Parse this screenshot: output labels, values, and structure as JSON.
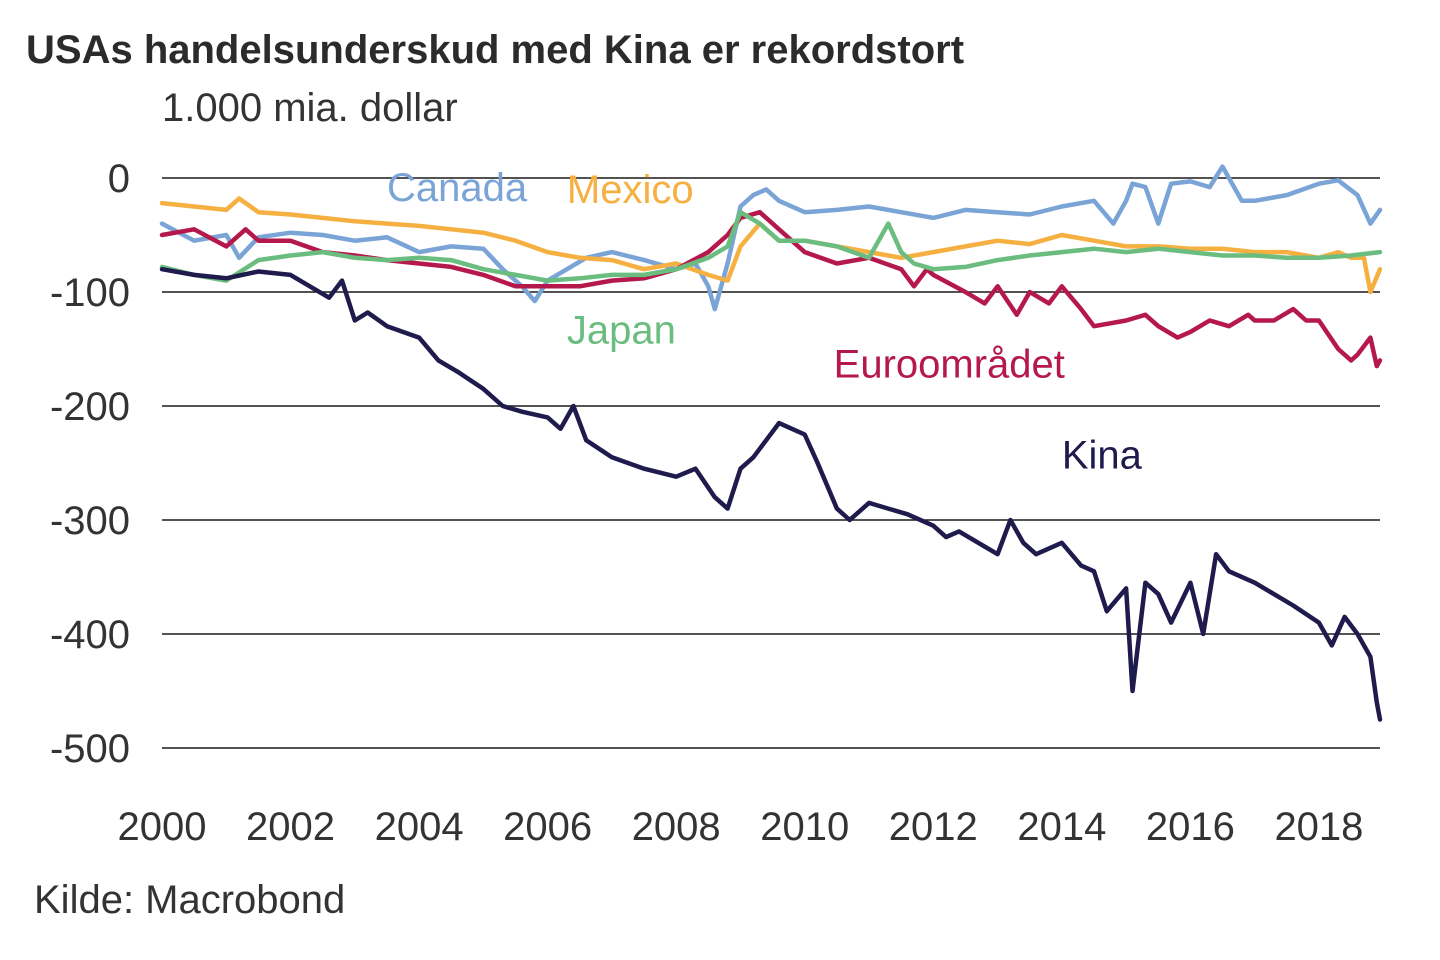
{
  "chart_data": {
    "type": "line",
    "title": "USAs handelsunderskud med Kina er rekordstort",
    "ylabel": "1.000 mia. dollar",
    "xlabel": "",
    "source": "Kilde: Macrobond",
    "ylim": [
      -500,
      0
    ],
    "yticks": [
      0,
      -100,
      -200,
      -300,
      -400,
      -500
    ],
    "ytick_labels": [
      "0",
      "-100",
      "-200",
      "-300",
      "-400",
      "-500"
    ],
    "xlim": [
      2000,
      2018.95
    ],
    "xticks": [
      2000,
      2002,
      2004,
      2006,
      2008,
      2010,
      2012,
      2014,
      2016,
      2018
    ],
    "xtick_labels": [
      "2000",
      "2002",
      "2004",
      "2006",
      "2008",
      "2010",
      "2012",
      "2014",
      "2016",
      "2018"
    ],
    "grid": true,
    "legend": "inline labels",
    "series": [
      {
        "name": "Canada",
        "color": "#7ba4d6",
        "x": [
          2000,
          2000.5,
          2001,
          2001.2,
          2001.5,
          2002,
          2002.5,
          2003,
          2003.5,
          2004,
          2004.5,
          2005,
          2005.3,
          2005.6,
          2005.8,
          2006,
          2006.3,
          2006.6,
          2007,
          2007.5,
          2008,
          2008.3,
          2008.5,
          2008.6,
          2008.8,
          2009,
          2009.2,
          2009.4,
          2009.6,
          2010,
          2010.5,
          2011,
          2011.5,
          2012,
          2012.5,
          2013,
          2013.5,
          2014,
          2014.5,
          2014.8,
          2015,
          2015.1,
          2015.3,
          2015.5,
          2015.7,
          2016,
          2016.3,
          2016.5,
          2016.8,
          2017,
          2017.5,
          2018,
          2018.3,
          2018.6,
          2018.8,
          2018.95
        ],
        "values": [
          -40,
          -55,
          -50,
          -70,
          -52,
          -48,
          -50,
          -55,
          -52,
          -65,
          -60,
          -62,
          -80,
          -95,
          -108,
          -90,
          -80,
          -70,
          -65,
          -72,
          -80,
          -75,
          -95,
          -115,
          -75,
          -25,
          -15,
          -10,
          -20,
          -30,
          -28,
          -25,
          -30,
          -35,
          -28,
          -30,
          -32,
          -25,
          -20,
          -40,
          -20,
          -5,
          -8,
          -40,
          -5,
          -3,
          -8,
          10,
          -20,
          -20,
          -15,
          -5,
          -2,
          -15,
          -40,
          -28
        ]
      },
      {
        "name": "Mexico",
        "color": "#f5b041",
        "x": [
          2000,
          2000.5,
          2001,
          2001.2,
          2001.5,
          2002,
          2002.5,
          2003,
          2003.5,
          2004,
          2004.5,
          2005,
          2005.5,
          2006,
          2006.5,
          2007,
          2007.5,
          2008,
          2008.5,
          2008.8,
          2009,
          2009.3,
          2009.6,
          2010,
          2010.5,
          2011,
          2011.5,
          2012,
          2012.5,
          2013,
          2013.5,
          2014,
          2014.5,
          2015,
          2015.5,
          2016,
          2016.5,
          2017,
          2017.5,
          2018,
          2018.3,
          2018.5,
          2018.7,
          2018.8,
          2018.95
        ],
        "values": [
          -22,
          -25,
          -28,
          -18,
          -30,
          -32,
          -35,
          -38,
          -40,
          -42,
          -45,
          -48,
          -55,
          -65,
          -70,
          -72,
          -80,
          -75,
          -85,
          -90,
          -60,
          -40,
          -55,
          -55,
          -60,
          -65,
          -70,
          -65,
          -60,
          -55,
          -58,
          -50,
          -55,
          -60,
          -60,
          -62,
          -62,
          -65,
          -65,
          -70,
          -65,
          -70,
          -70,
          -100,
          -80
        ]
      },
      {
        "name": "Euroområdet",
        "color": "#b5194b",
        "x": [
          2000,
          2000.5,
          2001,
          2001.3,
          2001.5,
          2002,
          2002.5,
          2003,
          2003.5,
          2004,
          2004.5,
          2005,
          2005.5,
          2006,
          2006.5,
          2007,
          2007.5,
          2008,
          2008.5,
          2008.8,
          2009,
          2009.3,
          2009.6,
          2010,
          2010.5,
          2011,
          2011.5,
          2011.7,
          2011.9,
          2012,
          2012.5,
          2012.8,
          2013,
          2013.3,
          2013.5,
          2013.8,
          2014,
          2014.3,
          2014.5,
          2015,
          2015.3,
          2015.5,
          2015.8,
          2016,
          2016.3,
          2016.6,
          2016.9,
          2017,
          2017.3,
          2017.6,
          2017.8,
          2018,
          2018.3,
          2018.5,
          2018.6,
          2018.8,
          2018.9,
          2018.95
        ],
        "values": [
          -50,
          -45,
          -60,
          -45,
          -55,
          -55,
          -65,
          -68,
          -72,
          -75,
          -78,
          -85,
          -95,
          -95,
          -95,
          -90,
          -88,
          -80,
          -65,
          -50,
          -35,
          -30,
          -45,
          -65,
          -75,
          -70,
          -80,
          -95,
          -80,
          -85,
          -100,
          -110,
          -95,
          -120,
          -100,
          -110,
          -95,
          -115,
          -130,
          -125,
          -120,
          -130,
          -140,
          -135,
          -125,
          -130,
          -120,
          -125,
          -125,
          -115,
          -125,
          -125,
          -150,
          -160,
          -155,
          -140,
          -165,
          -160
        ]
      },
      {
        "name": "Japan",
        "color": "#6abd7f",
        "x": [
          2000,
          2000.5,
          2001,
          2001.5,
          2002,
          2002.5,
          2003,
          2003.5,
          2004,
          2004.5,
          2005,
          2005.5,
          2006,
          2006.5,
          2007,
          2007.5,
          2008,
          2008.5,
          2008.8,
          2009,
          2009.3,
          2009.6,
          2010,
          2010.5,
          2011,
          2011.3,
          2011.5,
          2011.7,
          2012,
          2012.5,
          2013,
          2013.5,
          2014,
          2014.5,
          2015,
          2015.5,
          2016,
          2016.5,
          2017,
          2017.5,
          2018,
          2018.5,
          2018.95
        ],
        "values": [
          -78,
          -85,
          -90,
          -72,
          -68,
          -65,
          -70,
          -72,
          -70,
          -72,
          -80,
          -85,
          -90,
          -88,
          -85,
          -85,
          -80,
          -70,
          -60,
          -30,
          -40,
          -55,
          -55,
          -60,
          -70,
          -40,
          -65,
          -75,
          -80,
          -78,
          -72,
          -68,
          -65,
          -62,
          -65,
          -62,
          -65,
          -68,
          -68,
          -70,
          -70,
          -68,
          -65
        ]
      },
      {
        "name": "Kina",
        "color": "#1f1b4d",
        "x": [
          2000,
          2000.5,
          2001,
          2001.5,
          2002,
          2002.3,
          2002.6,
          2002.8,
          2003,
          2003.2,
          2003.5,
          2004,
          2004.3,
          2004.6,
          2005,
          2005.3,
          2005.6,
          2006,
          2006.2,
          2006.4,
          2006.6,
          2007,
          2007.5,
          2008,
          2008.3,
          2008.6,
          2008.8,
          2009,
          2009.2,
          2009.4,
          2009.6,
          2009.8,
          2010,
          2010.2,
          2010.5,
          2010.7,
          2011,
          2011.3,
          2011.6,
          2012,
          2012.2,
          2012.4,
          2012.7,
          2013,
          2013.2,
          2013.4,
          2013.6,
          2014,
          2014.3,
          2014.5,
          2014.7,
          2015,
          2015.1,
          2015.3,
          2015.5,
          2015.7,
          2016,
          2016.2,
          2016.4,
          2016.6,
          2017,
          2017.3,
          2017.6,
          2018,
          2018.2,
          2018.4,
          2018.6,
          2018.8,
          2018.9,
          2018.95
        ],
        "values": [
          -80,
          -85,
          -88,
          -82,
          -85,
          -95,
          -105,
          -90,
          -125,
          -118,
          -130,
          -140,
          -160,
          -170,
          -185,
          -200,
          -205,
          -210,
          -220,
          -200,
          -230,
          -245,
          -255,
          -262,
          -255,
          -280,
          -290,
          -255,
          -245,
          -230,
          -215,
          -220,
          -225,
          -250,
          -290,
          -300,
          -285,
          -290,
          -295,
          -305,
          -315,
          -310,
          -320,
          -330,
          -300,
          -320,
          -330,
          -320,
          -340,
          -345,
          -380,
          -360,
          -450,
          -355,
          -365,
          -390,
          -355,
          -400,
          -330,
          -345,
          -355,
          -365,
          -375,
          -390,
          -410,
          -385,
          -400,
          -420,
          -460,
          -475
        ]
      }
    ],
    "annotations": [
      {
        "text": "Canada",
        "series": "Canada",
        "x": 2003.5,
        "y": -20
      },
      {
        "text": "Mexico",
        "series": "Mexico",
        "x": 2006.3,
        "y": -22
      },
      {
        "text": "Japan",
        "series": "Japan",
        "x": 2006.3,
        "y": -145
      },
      {
        "text": "Euroområdet",
        "series": "Euroområdet",
        "x": 2010.45,
        "y": -175
      },
      {
        "text": "Kina",
        "series": "Kina",
        "x": 2014.0,
        "y": -255
      }
    ]
  }
}
